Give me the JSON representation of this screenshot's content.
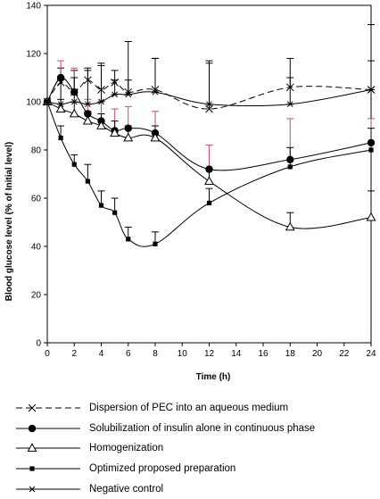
{
  "chart_data": {
    "type": "line",
    "title": "",
    "xlabel": "Time (h)",
    "ylabel": "Blood glucose level (%  of Initial level)",
    "xlim": [
      0,
      24
    ],
    "ylim": [
      0,
      140
    ],
    "xticks": [
      0,
      2,
      4,
      6,
      8,
      10,
      12,
      14,
      16,
      18,
      20,
      22,
      24
    ],
    "yticks": [
      0,
      20,
      40,
      60,
      80,
      100,
      120,
      140
    ],
    "xtick_labels": [
      "0",
      "2",
      "4",
      "6",
      "8",
      "10",
      "12",
      "14",
      "16",
      "18",
      "20",
      "22",
      "24"
    ],
    "ytick_labels": [
      "0",
      "20",
      "40",
      "60",
      "80",
      "100",
      "120",
      "140"
    ],
    "grid": false,
    "legend_position": "bottom",
    "series": [
      {
        "name": "Dispersion of PEC into an aqueous medium",
        "marker": "x",
        "line_style": "dashed",
        "color": "#000000",
        "error_color": "#000000",
        "x": [
          0,
          1,
          2,
          3,
          4,
          5,
          6,
          8,
          12,
          18,
          24
        ],
        "y": [
          100,
          108,
          104,
          109,
          105,
          108,
          104,
          105,
          97,
          106,
          105
        ],
        "error": [
          0,
          6,
          9,
          5,
          10,
          5,
          21,
          13,
          19,
          12,
          27
        ]
      },
      {
        "name": "Solubilization of insulin alone in continuous phase",
        "marker": "filled-circle",
        "line_style": "solid",
        "color": "#000000",
        "error_color": "#c0506a",
        "x": [
          0,
          1,
          2,
          3,
          4,
          5,
          6,
          8,
          12,
          18,
          24
        ],
        "y": [
          100,
          110,
          104,
          95,
          92,
          88,
          89,
          87,
          72,
          76,
          83
        ],
        "error": [
          0,
          7,
          10,
          6,
          8,
          9,
          9,
          9,
          10,
          17,
          10
        ]
      },
      {
        "name": "Homogenization",
        "marker": "open-triangle",
        "line_style": "solid",
        "color": "#000000",
        "error_color": "#000000",
        "x": [
          0,
          1,
          2,
          3,
          4,
          5,
          6,
          8,
          12,
          18,
          24
        ],
        "y": [
          100,
          97,
          95,
          92,
          90,
          87,
          85,
          85,
          67,
          48,
          52
        ],
        "error": [
          0,
          4,
          5,
          4,
          5,
          5,
          5,
          5,
          5,
          6,
          11
        ]
      },
      {
        "name": "Optimized proposed preparation",
        "marker": "filled-square",
        "line_style": "solid",
        "color": "#000000",
        "error_color": "#000000",
        "x": [
          0,
          1,
          2,
          3,
          4,
          5,
          6,
          8,
          12,
          18,
          24
        ],
        "y": [
          100,
          85,
          74,
          67,
          57,
          54,
          43,
          41,
          58,
          73,
          80
        ],
        "error": [
          0,
          5,
          4,
          7,
          6,
          6,
          5,
          5,
          6,
          8,
          9
        ]
      },
      {
        "name": "Negative control",
        "marker": "asterisk",
        "line_style": "solid",
        "color": "#000000",
        "error_color": "#000000",
        "x": [
          0,
          1,
          2,
          3,
          4,
          5,
          6,
          8,
          12,
          18,
          24
        ],
        "y": [
          100,
          99,
          100,
          99,
          100,
          103,
          103,
          104,
          99,
          99,
          105
        ],
        "error": [
          0,
          10,
          10,
          14,
          16,
          6,
          6,
          14,
          18,
          11,
          12
        ]
      }
    ]
  }
}
